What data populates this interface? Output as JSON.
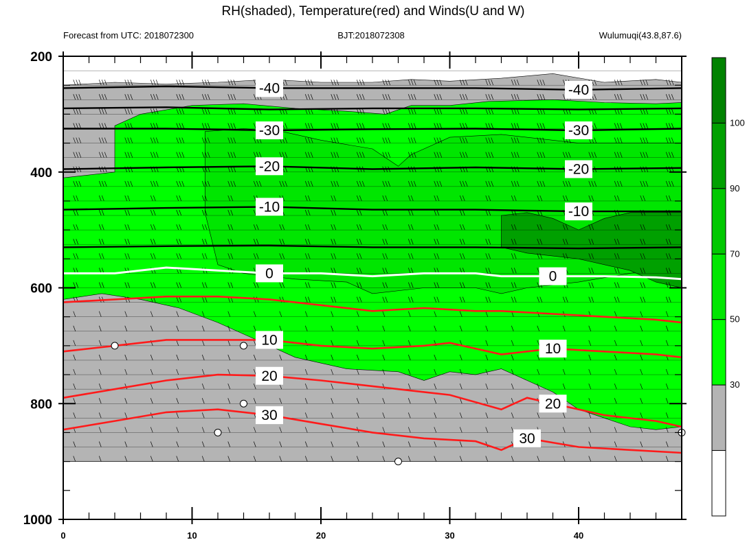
{
  "chart_data": {
    "type": "heatmap",
    "title": "RH(shaded), Temperature(red) and Winds(U and W)",
    "subtitle_left": "Forecast from UTC: 2018072300",
    "subtitle_center": "BJT:2018072308",
    "subtitle_right": "Wulumuqi(43.8,87.6)",
    "x": {
      "range": [
        0,
        48
      ],
      "ticks": [
        0,
        10,
        20,
        30,
        40
      ]
    },
    "y": {
      "range": [
        1000,
        200
      ],
      "ticks": [
        200,
        400,
        600,
        800,
        1000
      ],
      "direction": "pressure decreasing upward"
    },
    "colorbar": {
      "labels": [
        30,
        50,
        70,
        90,
        100
      ],
      "colors": [
        "#ffffff",
        "#b4b4b4",
        "#00ff00",
        "#00e600",
        "#00c800",
        "#00a000",
        "#008200"
      ]
    },
    "rh_regions": [
      {
        "level": 30,
        "points": [
          [
            0,
            250
          ],
          [
            4,
            245
          ],
          [
            8,
            248
          ],
          [
            12,
            245
          ],
          [
            16,
            240
          ],
          [
            20,
            245
          ],
          [
            24,
            245
          ],
          [
            27,
            240
          ],
          [
            30,
            243
          ],
          [
            34,
            238
          ],
          [
            38,
            230
          ],
          [
            42,
            245
          ],
          [
            46,
            240
          ],
          [
            48,
            245
          ],
          [
            48,
            900
          ],
          [
            0,
            900
          ]
        ]
      },
      {
        "level": 50,
        "points": [
          [
            4,
            320
          ],
          [
            6,
            300
          ],
          [
            10,
            285
          ],
          [
            14,
            282
          ],
          [
            18,
            290
          ],
          [
            22,
            295
          ],
          [
            25,
            300
          ],
          [
            27,
            285
          ],
          [
            30,
            285
          ],
          [
            33,
            278
          ],
          [
            38,
            275
          ],
          [
            42,
            280
          ],
          [
            46,
            282
          ],
          [
            48,
            280
          ],
          [
            48,
            840
          ],
          [
            46,
            845
          ],
          [
            44,
            840
          ],
          [
            42,
            825
          ],
          [
            40,
            810
          ],
          [
            38,
            780
          ],
          [
            36,
            760
          ],
          [
            34,
            740
          ],
          [
            32,
            750
          ],
          [
            30,
            745
          ],
          [
            28,
            760
          ],
          [
            26,
            745
          ],
          [
            22,
            740
          ],
          [
            18,
            720
          ],
          [
            15,
            690
          ],
          [
            12,
            660
          ],
          [
            9,
            635
          ],
          [
            6,
            620
          ],
          [
            3,
            610
          ],
          [
            0,
            620
          ],
          [
            0,
            410
          ],
          [
            4,
            400
          ]
        ]
      },
      {
        "level": 70,
        "points": [
          [
            11,
            330
          ],
          [
            14,
            325
          ],
          [
            17,
            330
          ],
          [
            20,
            345
          ],
          [
            24,
            360
          ],
          [
            26,
            390
          ],
          [
            27,
            370
          ],
          [
            30,
            340
          ],
          [
            34,
            335
          ],
          [
            40,
            350
          ],
          [
            48,
            350
          ],
          [
            48,
            560
          ],
          [
            44,
            575
          ],
          [
            40,
            590
          ],
          [
            36,
            600
          ],
          [
            34,
            610
          ],
          [
            32,
            600
          ],
          [
            28,
            600
          ],
          [
            24,
            610
          ],
          [
            22,
            590
          ],
          [
            18,
            585
          ],
          [
            14,
            575
          ],
          [
            12,
            560
          ],
          [
            11,
            470
          ]
        ]
      },
      {
        "level": 90,
        "points": [
          [
            34,
            475
          ],
          [
            36,
            470
          ],
          [
            38,
            480
          ],
          [
            40,
            500
          ],
          [
            42,
            480
          ],
          [
            44,
            470
          ],
          [
            48,
            470
          ],
          [
            48,
            600
          ],
          [
            46,
            590
          ],
          [
            44,
            570
          ],
          [
            42,
            560
          ],
          [
            40,
            550
          ],
          [
            38,
            545
          ],
          [
            36,
            540
          ],
          [
            34,
            530
          ]
        ]
      }
    ],
    "temperature_red": [
      {
        "label": "0",
        "points": [
          [
            0,
            575
          ],
          [
            4,
            575
          ],
          [
            8,
            565
          ],
          [
            12,
            570
          ],
          [
            16,
            575
          ],
          [
            20,
            575
          ],
          [
            24,
            580
          ],
          [
            28,
            575
          ],
          [
            32,
            575
          ],
          [
            34,
            580
          ],
          [
            38,
            580
          ],
          [
            42,
            580
          ],
          [
            46,
            582
          ],
          [
            48,
            585
          ]
        ]
      },
      {
        "label": "",
        "points": [
          [
            0,
            625
          ],
          [
            4,
            620
          ],
          [
            8,
            615
          ],
          [
            12,
            615
          ],
          [
            16,
            620
          ],
          [
            20,
            630
          ],
          [
            24,
            640
          ],
          [
            28,
            635
          ],
          [
            32,
            640
          ],
          [
            34,
            640
          ],
          [
            38,
            645
          ],
          [
            42,
            650
          ],
          [
            46,
            655
          ],
          [
            48,
            660
          ]
        ]
      },
      {
        "label": "10",
        "points": [
          [
            0,
            710
          ],
          [
            4,
            700
          ],
          [
            8,
            690
          ],
          [
            12,
            690
          ],
          [
            16,
            690
          ],
          [
            20,
            700
          ],
          [
            24,
            705
          ],
          [
            28,
            700
          ],
          [
            30,
            695
          ],
          [
            34,
            715
          ],
          [
            38,
            705
          ],
          [
            42,
            710
          ],
          [
            46,
            715
          ],
          [
            48,
            720
          ]
        ]
      },
      {
        "label": "20",
        "points": [
          [
            0,
            790
          ],
          [
            4,
            775
          ],
          [
            8,
            760
          ],
          [
            12,
            750
          ],
          [
            16,
            752
          ],
          [
            20,
            760
          ],
          [
            24,
            770
          ],
          [
            28,
            780
          ],
          [
            30,
            785
          ],
          [
            34,
            810
          ],
          [
            36,
            790
          ],
          [
            38,
            800
          ],
          [
            42,
            820
          ],
          [
            46,
            830
          ],
          [
            48,
            840
          ]
        ]
      },
      {
        "label": "30",
        "points": [
          [
            0,
            845
          ],
          [
            4,
            830
          ],
          [
            8,
            815
          ],
          [
            12,
            810
          ],
          [
            16,
            820
          ],
          [
            20,
            835
          ],
          [
            24,
            850
          ],
          [
            28,
            860
          ],
          [
            32,
            865
          ],
          [
            34,
            880
          ],
          [
            36,
            860
          ],
          [
            40,
            875
          ],
          [
            44,
            880
          ],
          [
            48,
            885
          ]
        ]
      }
    ],
    "temperature_black": [
      {
        "label": "-40",
        "points": [
          [
            0,
            255
          ],
          [
            8,
            252
          ],
          [
            16,
            255
          ],
          [
            24,
            255
          ],
          [
            32,
            255
          ],
          [
            40,
            258
          ],
          [
            48,
            255
          ]
        ]
      },
      {
        "label": "",
        "points": [
          [
            0,
            290
          ],
          [
            8,
            288
          ],
          [
            16,
            292
          ],
          [
            24,
            290
          ],
          [
            32,
            290
          ],
          [
            40,
            292
          ],
          [
            48,
            290
          ]
        ]
      },
      {
        "label": "-30",
        "points": [
          [
            0,
            325
          ],
          [
            8,
            325
          ],
          [
            16,
            328
          ],
          [
            24,
            326
          ],
          [
            32,
            325
          ],
          [
            40,
            328
          ],
          [
            48,
            325
          ]
        ]
      },
      {
        "label": "-20",
        "points": [
          [
            0,
            395
          ],
          [
            8,
            392
          ],
          [
            16,
            390
          ],
          [
            24,
            395
          ],
          [
            32,
            392
          ],
          [
            40,
            395
          ],
          [
            48,
            393
          ]
        ]
      },
      {
        "label": "-10",
        "points": [
          [
            0,
            465
          ],
          [
            8,
            462
          ],
          [
            16,
            460
          ],
          [
            24,
            465
          ],
          [
            32,
            465
          ],
          [
            40,
            468
          ],
          [
            48,
            468
          ]
        ]
      },
      {
        "label": "",
        "points": [
          [
            0,
            530
          ],
          [
            8,
            528
          ],
          [
            16,
            527
          ],
          [
            24,
            530
          ],
          [
            32,
            530
          ],
          [
            40,
            532
          ],
          [
            48,
            530
          ]
        ]
      }
    ]
  }
}
